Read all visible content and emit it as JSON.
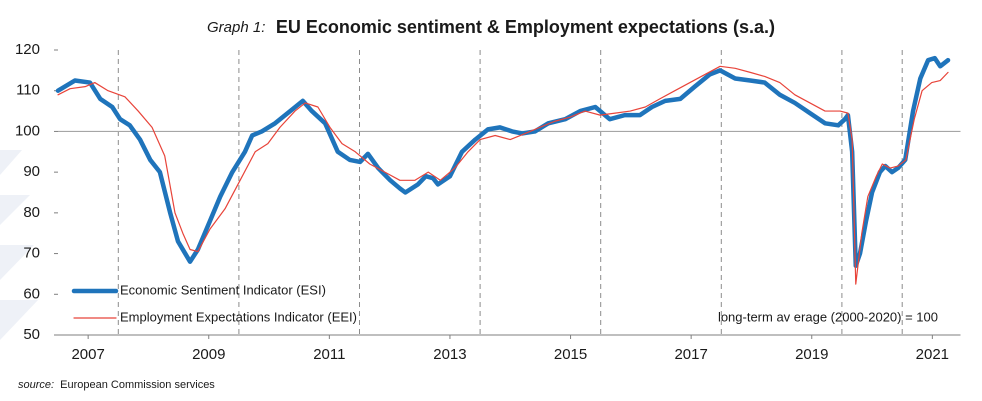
{
  "chart_data": {
    "type": "line",
    "title_prefix": "Graph 1:",
    "title": "EU Economic sentiment & Employment expectations (s.a.)",
    "source_prefix": "source:",
    "source": "European Commission services",
    "annotation": "long-term av erage (2000-2020) = 100",
    "xlim": [
      2007,
      2022
    ],
    "ylim": [
      50,
      120
    ],
    "yticks": [
      50,
      60,
      70,
      80,
      90,
      100,
      110,
      120
    ],
    "xticks": [
      {
        "value": 2007.5,
        "label": "2007"
      },
      {
        "value": 2009.5,
        "label": "2009"
      },
      {
        "value": 2011.5,
        "label": "2011"
      },
      {
        "value": 2013.5,
        "label": "2013"
      },
      {
        "value": 2015.5,
        "label": "2015"
      },
      {
        "value": 2017.5,
        "label": "2017"
      },
      {
        "value": 2019.5,
        "label": "2019"
      },
      {
        "value": 2021.5,
        "label": "2021"
      }
    ],
    "vlines": [
      2008,
      2010,
      2012,
      2014,
      2016,
      2018,
      2020,
      2021
    ],
    "reference_line": 100,
    "legend": "lower left",
    "series": [
      {
        "name": "Economic Sentiment Indicator (ESI)",
        "color": "#1f74bb",
        "width": 4.5,
        "x": [
          2007.0,
          2007.28,
          2007.53,
          2007.7,
          2007.9,
          2008.03,
          2008.19,
          2008.36,
          2008.53,
          2008.69,
          2008.86,
          2008.99,
          2009.11,
          2009.19,
          2009.32,
          2009.52,
          2009.69,
          2009.89,
          2010.1,
          2010.22,
          2010.38,
          2010.6,
          2010.85,
          2011.06,
          2011.21,
          2011.43,
          2011.64,
          2011.84,
          2012.01,
          2012.14,
          2012.31,
          2012.51,
          2012.67,
          2012.76,
          2012.97,
          2013.1,
          2013.22,
          2013.3,
          2013.5,
          2013.7,
          2013.92,
          2014.13,
          2014.33,
          2014.53,
          2014.7,
          2014.91,
          2015.13,
          2015.41,
          2015.66,
          2015.91,
          2016.15,
          2016.4,
          2016.65,
          2016.85,
          2017.07,
          2017.32,
          2017.56,
          2017.81,
          2017.98,
          2018.23,
          2018.48,
          2018.72,
          2018.97,
          2019.22,
          2019.47,
          2019.72,
          2019.94,
          2020.05,
          2020.1,
          2020.17,
          2020.23,
          2020.3,
          2020.4,
          2020.5,
          2020.63,
          2020.72,
          2020.83,
          2020.93,
          2021.05,
          2021.18,
          2021.3,
          2021.43,
          2021.54,
          2021.63,
          2021.76
        ],
        "values": [
          110,
          112.5,
          112,
          108,
          106,
          103,
          101.5,
          98,
          93,
          90,
          80,
          73,
          70,
          68,
          71,
          78,
          84,
          90,
          95,
          99,
          100,
          102,
          105,
          107.5,
          105,
          102,
          95,
          93,
          92.5,
          94.5,
          91,
          88,
          86,
          85,
          87,
          89,
          88.5,
          87,
          89,
          95,
          98,
          100.5,
          101,
          100,
          99.5,
          100,
          102,
          103,
          105,
          106,
          103,
          104,
          104,
          106,
          107.5,
          108,
          111,
          114,
          115,
          113,
          112.5,
          112,
          109,
          107,
          104.5,
          102,
          101.5,
          103,
          104,
          95,
          67,
          70,
          78,
          85,
          90,
          91.5,
          90,
          91,
          93,
          105,
          113,
          117.5,
          118,
          116,
          117.5
        ]
      },
      {
        "name": "Employment Expectations Indicator (EEI)",
        "color": "#e8443a",
        "width": 1.2,
        "x": [
          2007.0,
          2007.2,
          2007.45,
          2007.61,
          2007.83,
          2008.11,
          2008.33,
          2008.56,
          2008.77,
          2008.94,
          2009.07,
          2009.19,
          2009.32,
          2009.52,
          2009.77,
          2010.02,
          2010.27,
          2010.48,
          2010.68,
          2010.93,
          2011.1,
          2011.31,
          2011.51,
          2011.71,
          2011.93,
          2012.17,
          2012.42,
          2012.67,
          2012.92,
          2013.14,
          2013.34,
          2013.58,
          2013.8,
          2014.0,
          2014.25,
          2014.5,
          2014.75,
          2014.99,
          2015.24,
          2015.49,
          2015.74,
          2015.99,
          2016.24,
          2016.49,
          2016.74,
          2016.98,
          2017.23,
          2017.48,
          2017.73,
          2017.98,
          2018.23,
          2018.48,
          2018.72,
          2018.97,
          2019.22,
          2019.47,
          2019.72,
          2019.97,
          2020.1,
          2020.17,
          2020.23,
          2020.33,
          2020.43,
          2020.57,
          2020.67,
          2020.8,
          2020.93,
          2021.06,
          2021.2,
          2021.33,
          2021.49,
          2021.63,
          2021.76
        ],
        "values": [
          109,
          110.5,
          111,
          112,
          110,
          108.5,
          105,
          101,
          94,
          80,
          75,
          71,
          70.5,
          76,
          81,
          88,
          95,
          97,
          101,
          105,
          107,
          106,
          101,
          97,
          95,
          92,
          90,
          88,
          88,
          90,
          88,
          91,
          95,
          98,
          99,
          98,
          99.5,
          101,
          102.5,
          103.5,
          105,
          104,
          104.5,
          105,
          106,
          108,
          110,
          112,
          114,
          116,
          115.5,
          114.5,
          113.5,
          112,
          109,
          107,
          105,
          105,
          104.5,
          98,
          62.5,
          75,
          84,
          89,
          92,
          91,
          91.5,
          93,
          103,
          110,
          112,
          112.5,
          114.5
        ]
      }
    ]
  }
}
